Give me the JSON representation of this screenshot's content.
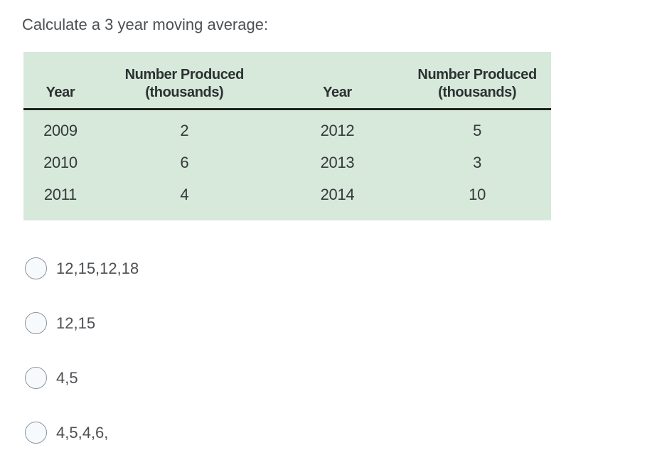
{
  "question": {
    "text": "Calculate a 3 year moving average:"
  },
  "table": {
    "background_color": "#d7e9da",
    "rule_color": "#1f241f",
    "headers": [
      {
        "line1": "",
        "line2": "Year"
      },
      {
        "line1": "Number Produced",
        "line2": "(thousands)"
      },
      {
        "line1": "",
        "line2": "Year"
      },
      {
        "line1": "Number Produced",
        "line2": "(thousands)"
      }
    ],
    "rows": [
      [
        "2009",
        "2",
        "2012",
        "5"
      ],
      [
        "2010",
        "6",
        "2013",
        "3"
      ],
      [
        "2011",
        "4",
        "2014",
        "10"
      ]
    ]
  },
  "options": [
    {
      "label": "12,15,12,18",
      "selected": false
    },
    {
      "label": "12,15",
      "selected": false
    },
    {
      "label": "4,5",
      "selected": false
    },
    {
      "label": "4,5,4,6,",
      "selected": false
    }
  ]
}
